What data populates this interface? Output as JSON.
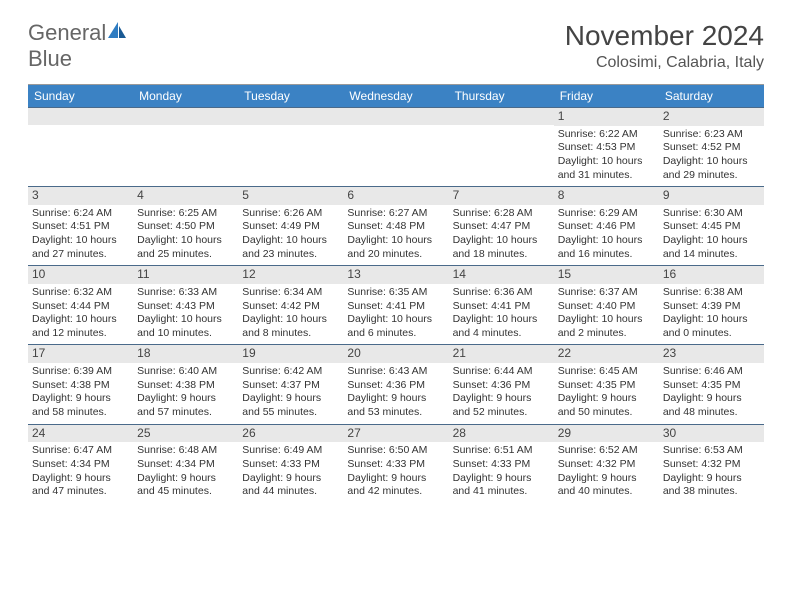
{
  "logo": {
    "word1": "General",
    "word2": "Blue"
  },
  "title": "November 2024",
  "location": "Colosimi, Calabria, Italy",
  "colors": {
    "header_bg": "#3b82c4",
    "header_text": "#ffffff",
    "daynum_bg": "#e8e8e8",
    "row_border": "#4a6a8a",
    "logo_gray": "#666666",
    "logo_blue": "#2e7cc2"
  },
  "days": [
    "Sunday",
    "Monday",
    "Tuesday",
    "Wednesday",
    "Thursday",
    "Friday",
    "Saturday"
  ],
  "grid": [
    [
      {
        "n": "",
        "sr": "",
        "ss": "",
        "dl1": "",
        "dl2": ""
      },
      {
        "n": "",
        "sr": "",
        "ss": "",
        "dl1": "",
        "dl2": ""
      },
      {
        "n": "",
        "sr": "",
        "ss": "",
        "dl1": "",
        "dl2": ""
      },
      {
        "n": "",
        "sr": "",
        "ss": "",
        "dl1": "",
        "dl2": ""
      },
      {
        "n": "",
        "sr": "",
        "ss": "",
        "dl1": "",
        "dl2": ""
      },
      {
        "n": "1",
        "sr": "Sunrise: 6:22 AM",
        "ss": "Sunset: 4:53 PM",
        "dl1": "Daylight: 10 hours",
        "dl2": "and 31 minutes."
      },
      {
        "n": "2",
        "sr": "Sunrise: 6:23 AM",
        "ss": "Sunset: 4:52 PM",
        "dl1": "Daylight: 10 hours",
        "dl2": "and 29 minutes."
      }
    ],
    [
      {
        "n": "3",
        "sr": "Sunrise: 6:24 AM",
        "ss": "Sunset: 4:51 PM",
        "dl1": "Daylight: 10 hours",
        "dl2": "and 27 minutes."
      },
      {
        "n": "4",
        "sr": "Sunrise: 6:25 AM",
        "ss": "Sunset: 4:50 PM",
        "dl1": "Daylight: 10 hours",
        "dl2": "and 25 minutes."
      },
      {
        "n": "5",
        "sr": "Sunrise: 6:26 AM",
        "ss": "Sunset: 4:49 PM",
        "dl1": "Daylight: 10 hours",
        "dl2": "and 23 minutes."
      },
      {
        "n": "6",
        "sr": "Sunrise: 6:27 AM",
        "ss": "Sunset: 4:48 PM",
        "dl1": "Daylight: 10 hours",
        "dl2": "and 20 minutes."
      },
      {
        "n": "7",
        "sr": "Sunrise: 6:28 AM",
        "ss": "Sunset: 4:47 PM",
        "dl1": "Daylight: 10 hours",
        "dl2": "and 18 minutes."
      },
      {
        "n": "8",
        "sr": "Sunrise: 6:29 AM",
        "ss": "Sunset: 4:46 PM",
        "dl1": "Daylight: 10 hours",
        "dl2": "and 16 minutes."
      },
      {
        "n": "9",
        "sr": "Sunrise: 6:30 AM",
        "ss": "Sunset: 4:45 PM",
        "dl1": "Daylight: 10 hours",
        "dl2": "and 14 minutes."
      }
    ],
    [
      {
        "n": "10",
        "sr": "Sunrise: 6:32 AM",
        "ss": "Sunset: 4:44 PM",
        "dl1": "Daylight: 10 hours",
        "dl2": "and 12 minutes."
      },
      {
        "n": "11",
        "sr": "Sunrise: 6:33 AM",
        "ss": "Sunset: 4:43 PM",
        "dl1": "Daylight: 10 hours",
        "dl2": "and 10 minutes."
      },
      {
        "n": "12",
        "sr": "Sunrise: 6:34 AM",
        "ss": "Sunset: 4:42 PM",
        "dl1": "Daylight: 10 hours",
        "dl2": "and 8 minutes."
      },
      {
        "n": "13",
        "sr": "Sunrise: 6:35 AM",
        "ss": "Sunset: 4:41 PM",
        "dl1": "Daylight: 10 hours",
        "dl2": "and 6 minutes."
      },
      {
        "n": "14",
        "sr": "Sunrise: 6:36 AM",
        "ss": "Sunset: 4:41 PM",
        "dl1": "Daylight: 10 hours",
        "dl2": "and 4 minutes."
      },
      {
        "n": "15",
        "sr": "Sunrise: 6:37 AM",
        "ss": "Sunset: 4:40 PM",
        "dl1": "Daylight: 10 hours",
        "dl2": "and 2 minutes."
      },
      {
        "n": "16",
        "sr": "Sunrise: 6:38 AM",
        "ss": "Sunset: 4:39 PM",
        "dl1": "Daylight: 10 hours",
        "dl2": "and 0 minutes."
      }
    ],
    [
      {
        "n": "17",
        "sr": "Sunrise: 6:39 AM",
        "ss": "Sunset: 4:38 PM",
        "dl1": "Daylight: 9 hours",
        "dl2": "and 58 minutes."
      },
      {
        "n": "18",
        "sr": "Sunrise: 6:40 AM",
        "ss": "Sunset: 4:38 PM",
        "dl1": "Daylight: 9 hours",
        "dl2": "and 57 minutes."
      },
      {
        "n": "19",
        "sr": "Sunrise: 6:42 AM",
        "ss": "Sunset: 4:37 PM",
        "dl1": "Daylight: 9 hours",
        "dl2": "and 55 minutes."
      },
      {
        "n": "20",
        "sr": "Sunrise: 6:43 AM",
        "ss": "Sunset: 4:36 PM",
        "dl1": "Daylight: 9 hours",
        "dl2": "and 53 minutes."
      },
      {
        "n": "21",
        "sr": "Sunrise: 6:44 AM",
        "ss": "Sunset: 4:36 PM",
        "dl1": "Daylight: 9 hours",
        "dl2": "and 52 minutes."
      },
      {
        "n": "22",
        "sr": "Sunrise: 6:45 AM",
        "ss": "Sunset: 4:35 PM",
        "dl1": "Daylight: 9 hours",
        "dl2": "and 50 minutes."
      },
      {
        "n": "23",
        "sr": "Sunrise: 6:46 AM",
        "ss": "Sunset: 4:35 PM",
        "dl1": "Daylight: 9 hours",
        "dl2": "and 48 minutes."
      }
    ],
    [
      {
        "n": "24",
        "sr": "Sunrise: 6:47 AM",
        "ss": "Sunset: 4:34 PM",
        "dl1": "Daylight: 9 hours",
        "dl2": "and 47 minutes."
      },
      {
        "n": "25",
        "sr": "Sunrise: 6:48 AM",
        "ss": "Sunset: 4:34 PM",
        "dl1": "Daylight: 9 hours",
        "dl2": "and 45 minutes."
      },
      {
        "n": "26",
        "sr": "Sunrise: 6:49 AM",
        "ss": "Sunset: 4:33 PM",
        "dl1": "Daylight: 9 hours",
        "dl2": "and 44 minutes."
      },
      {
        "n": "27",
        "sr": "Sunrise: 6:50 AM",
        "ss": "Sunset: 4:33 PM",
        "dl1": "Daylight: 9 hours",
        "dl2": "and 42 minutes."
      },
      {
        "n": "28",
        "sr": "Sunrise: 6:51 AM",
        "ss": "Sunset: 4:33 PM",
        "dl1": "Daylight: 9 hours",
        "dl2": "and 41 minutes."
      },
      {
        "n": "29",
        "sr": "Sunrise: 6:52 AM",
        "ss": "Sunset: 4:32 PM",
        "dl1": "Daylight: 9 hours",
        "dl2": "and 40 minutes."
      },
      {
        "n": "30",
        "sr": "Sunrise: 6:53 AM",
        "ss": "Sunset: 4:32 PM",
        "dl1": "Daylight: 9 hours",
        "dl2": "and 38 minutes."
      }
    ]
  ]
}
